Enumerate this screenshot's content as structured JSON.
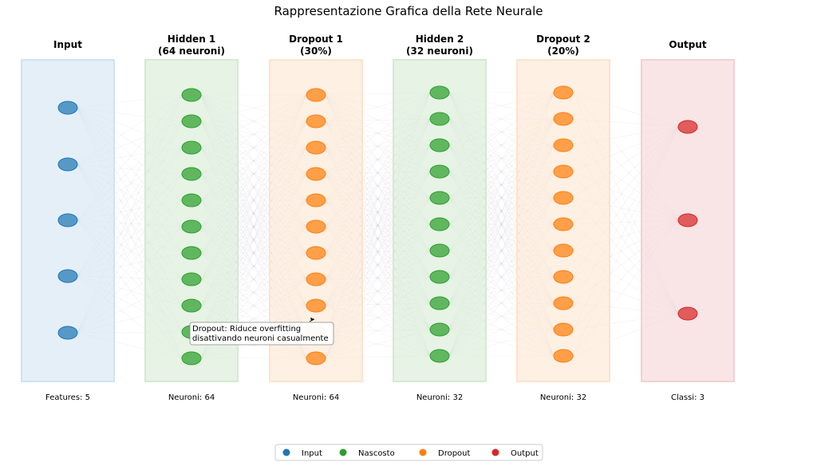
{
  "title": "Rappresentazione Grafica della Rete Neurale",
  "layers": [
    {
      "title_lines": [
        "Input"
      ],
      "footer": "Features: 5",
      "type": "input",
      "nodes": 5
    },
    {
      "title_lines": [
        "Hidden 1",
        "(64 neuroni)"
      ],
      "footer": "Neuroni: 64",
      "type": "hidden",
      "nodes": 11
    },
    {
      "title_lines": [
        "Dropout 1",
        "(30%)"
      ],
      "footer": "Neuroni: 64",
      "type": "dropout",
      "nodes": 11
    },
    {
      "title_lines": [
        "Hidden 2",
        "(32 neuroni)"
      ],
      "footer": "Neuroni: 32",
      "type": "hidden",
      "nodes": 11
    },
    {
      "title_lines": [
        "Dropout 2",
        "(20%)"
      ],
      "footer": "Neuroni: 32",
      "type": "dropout",
      "nodes": 11
    },
    {
      "title_lines": [
        "Output"
      ],
      "footer": "Classi: 3",
      "type": "output",
      "nodes": 3
    }
  ],
  "annotation": {
    "lines": [
      "Dropout: Riduce overfitting",
      "disattivando neuroni casualmente"
    ]
  },
  "legend": [
    {
      "label": "Input",
      "type": "input"
    },
    {
      "label": "Nascosto",
      "type": "hidden"
    },
    {
      "label": "Dropout",
      "type": "dropout"
    },
    {
      "label": "Output",
      "type": "output"
    }
  ],
  "colors": {
    "input": "#1f77b4",
    "hidden": "#2ca02c",
    "dropout": "#ff7f0e",
    "output": "#d62728",
    "input_bg": "#cfe2f3",
    "hidden_bg": "#d4ead0",
    "dropout_bg": "#fde3cc",
    "output_bg": "#f4d0d2"
  }
}
